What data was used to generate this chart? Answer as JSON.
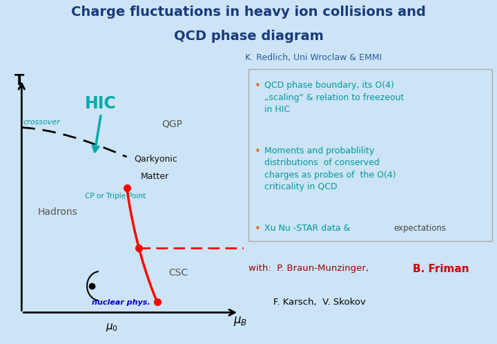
{
  "bg_color": "#cce4f5",
  "title_line1": "Charge fluctuations in heavy ion collisions and",
  "title_line2": "QCD phase diagram",
  "title_color": "#1a3a7a",
  "subtitle": "K. Redlich, Uni Wroclaw & EMMI",
  "subtitle_color": "#2c5aa0",
  "teal_color": "#009999",
  "hic_color": "#00aaaa",
  "crossover_color": "#009999",
  "phase_red": "#cc0000",
  "nuclear_color": "#0000cc",
  "hadrons_color": "#555555",
  "qgp_color": "#555555",
  "qm_color": "#111111",
  "csc_color": "#555555",
  "bullet_teal": "#009999",
  "bullet_dot": "#e07030",
  "friman_red": "#cc0000",
  "with_red": "#990000"
}
